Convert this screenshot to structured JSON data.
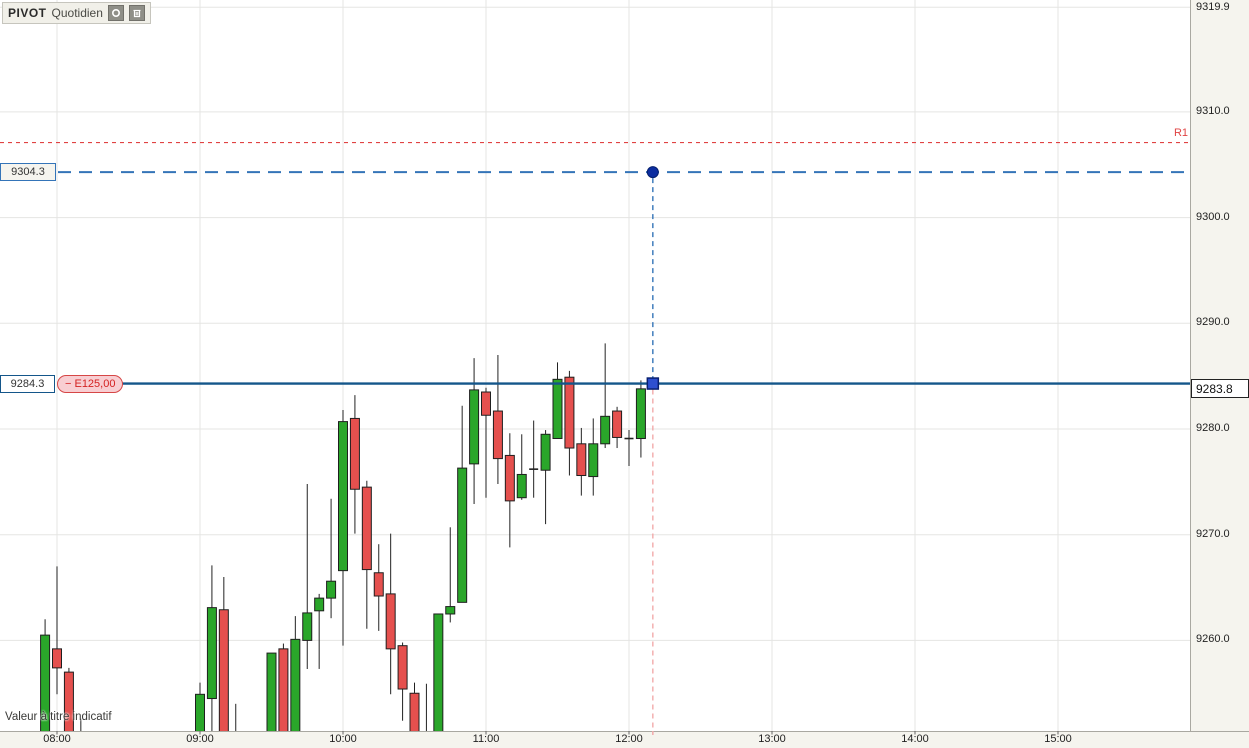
{
  "indicator_box": {
    "name": "PIVOT",
    "period": "Quotidien",
    "icons": [
      "target-icon",
      "trash-icon"
    ]
  },
  "footer_note": "Valeur à titre indicatif",
  "y_axis": {
    "labels": [
      {
        "text": "9319.9",
        "price": 9319.9
      },
      {
        "text": "9310.0",
        "price": 9310.0
      },
      {
        "text": "9300.0",
        "price": 9300.0
      },
      {
        "text": "9290.0",
        "price": 9290.0
      },
      {
        "text": "9280.0",
        "price": 9280.0
      },
      {
        "text": "9270.0",
        "price": 9270.0
      },
      {
        "text": "9260.0",
        "price": 9260.0
      }
    ]
  },
  "x_axis": {
    "labels": [
      {
        "text": "08:00",
        "hour": 8
      },
      {
        "text": "09:00",
        "hour": 9
      },
      {
        "text": "10:00",
        "hour": 10
      },
      {
        "text": "11:00",
        "hour": 11
      },
      {
        "text": "12:00",
        "hour": 12
      },
      {
        "text": "13:00",
        "hour": 13
      },
      {
        "text": "14:00",
        "hour": 14
      },
      {
        "text": "15:00",
        "hour": 15
      }
    ]
  },
  "levels": {
    "r1": {
      "label": "R1",
      "price": 9307.1
    },
    "target": {
      "label": "9304.3",
      "price": 9304.3
    },
    "position": {
      "label": "9284.3",
      "price": 9284.3,
      "pnl": "− E125,00"
    },
    "last": {
      "label": "9283.8",
      "price": 9283.8
    }
  },
  "marker": {
    "time": "12:10",
    "dot_price": 9304.3,
    "square_price": 9284.3
  },
  "colors": {
    "candle_up": "#2aa62a",
    "candle_down": "#e5504e",
    "candle_border": "#1f1f1f",
    "wick": "#222222",
    "grid": "#e5e5e3",
    "axis_bg": "#f5f4ee",
    "axis_border": "#a9a8a1",
    "r1_dash": "#e04343",
    "target_dash": "#3474b8",
    "position_line": "#14568a",
    "marker_dot": "#0c2da0",
    "marker_square": "#2e4fd0",
    "marker_square_border": "#081f70",
    "vertical_pink_dash": "#f2aaaa",
    "tick": "#666666"
  },
  "chart_data": {
    "type": "candlestick",
    "interval": "5min",
    "title": "PIVOT Quotidien",
    "x_visible_range": [
      "07:55",
      "15:55"
    ],
    "ylim": [
      9251.4,
      9320.6
    ],
    "grid": true,
    "candles": [
      {
        "t": "07:55",
        "o": 9251.0,
        "h": 9262.0,
        "l": 9251.0,
        "c": 9260.5
      },
      {
        "t": "08:00",
        "o": 9259.2,
        "h": 9267.0,
        "l": 9254.9,
        "c": 9257.4
      },
      {
        "t": "08:05",
        "o": 9257.0,
        "h": 9257.4,
        "l": 9250.8,
        "c": 9250.8
      },
      {
        "t": "08:10",
        "o": 9251.0,
        "h": 9252.6,
        "l": 9251.0,
        "c": 9251.0
      },
      {
        "t": "09:00",
        "o": 9250.8,
        "h": 9256.0,
        "l": 9250.8,
        "c": 9254.9
      },
      {
        "t": "09:05",
        "o": 9254.5,
        "h": 9267.1,
        "l": 9251.0,
        "c": 9263.1
      },
      {
        "t": "09:10",
        "o": 9262.9,
        "h": 9266.0,
        "l": 9250.8,
        "c": 9250.8
      },
      {
        "t": "09:15",
        "o": 9251.0,
        "h": 9254.0,
        "l": 9251.0,
        "c": 9251.0
      },
      {
        "t": "09:30",
        "o": 9250.8,
        "h": 9258.8,
        "l": 9250.8,
        "c": 9258.8
      },
      {
        "t": "09:35",
        "o": 9259.2,
        "h": 9259.7,
        "l": 9250.8,
        "c": 9250.8
      },
      {
        "t": "09:40",
        "o": 9250.8,
        "h": 9262.3,
        "l": 9250.8,
        "c": 9260.1
      },
      {
        "t": "09:45",
        "o": 9260.0,
        "h": 9274.8,
        "l": 9257.3,
        "c": 9262.6
      },
      {
        "t": "09:50",
        "o": 9262.8,
        "h": 9264.4,
        "l": 9257.3,
        "c": 9264.0
      },
      {
        "t": "09:55",
        "o": 9264.0,
        "h": 9273.4,
        "l": 9262.1,
        "c": 9265.6
      },
      {
        "t": "10:00",
        "o": 9266.6,
        "h": 9281.8,
        "l": 9259.5,
        "c": 9280.7
      },
      {
        "t": "10:05",
        "o": 9281.0,
        "h": 9283.2,
        "l": 9270.1,
        "c": 9274.3
      },
      {
        "t": "10:10",
        "o": 9274.5,
        "h": 9275.1,
        "l": 9261.1,
        "c": 9266.7
      },
      {
        "t": "10:15",
        "o": 9266.4,
        "h": 9269.1,
        "l": 9260.9,
        "c": 9264.2
      },
      {
        "t": "10:20",
        "o": 9264.4,
        "h": 9270.1,
        "l": 9254.9,
        "c": 9259.2
      },
      {
        "t": "10:25",
        "o": 9259.5,
        "h": 9259.8,
        "l": 9252.4,
        "c": 9255.4
      },
      {
        "t": "10:30",
        "o": 9255.0,
        "h": 9256.0,
        "l": 9250.8,
        "c": 9250.8
      },
      {
        "t": "10:35",
        "o": 9251.0,
        "h": 9255.9,
        "l": 9251.0,
        "c": 9251.0
      },
      {
        "t": "10:40",
        "o": 9250.8,
        "h": 9262.5,
        "l": 9250.8,
        "c": 9262.5
      },
      {
        "t": "10:45",
        "o": 9262.5,
        "h": 9270.7,
        "l": 9261.7,
        "c": 9263.2
      },
      {
        "t": "10:50",
        "o": 9263.6,
        "h": 9282.2,
        "l": 9263.6,
        "c": 9276.3
      },
      {
        "t": "10:55",
        "o": 9276.7,
        "h": 9286.7,
        "l": 9272.9,
        "c": 9283.7
      },
      {
        "t": "11:00",
        "o": 9283.5,
        "h": 9283.9,
        "l": 9273.5,
        "c": 9281.3
      },
      {
        "t": "11:05",
        "o": 9281.7,
        "h": 9287.0,
        "l": 9274.8,
        "c": 9277.2
      },
      {
        "t": "11:10",
        "o": 9277.5,
        "h": 9279.6,
        "l": 9268.8,
        "c": 9273.2
      },
      {
        "t": "11:15",
        "o": 9273.5,
        "h": 9279.5,
        "l": 9273.3,
        "c": 9275.7
      },
      {
        "t": "11:20",
        "o": 9276.2,
        "h": 9280.8,
        "l": 9273.5,
        "c": 9276.2
      },
      {
        "t": "11:25",
        "o": 9276.1,
        "h": 9279.9,
        "l": 9271.0,
        "c": 9279.5
      },
      {
        "t": "11:30",
        "o": 9279.1,
        "h": 9286.3,
        "l": 9279.1,
        "c": 9284.7
      },
      {
        "t": "11:35",
        "o": 9284.9,
        "h": 9285.5,
        "l": 9275.6,
        "c": 9278.2
      },
      {
        "t": "11:40",
        "o": 9278.6,
        "h": 9280.1,
        "l": 9273.7,
        "c": 9275.6
      },
      {
        "t": "11:45",
        "o": 9275.5,
        "h": 9281.0,
        "l": 9273.7,
        "c": 9278.6
      },
      {
        "t": "11:50",
        "o": 9278.6,
        "h": 9288.1,
        "l": 9278.2,
        "c": 9281.2
      },
      {
        "t": "11:55",
        "o": 9281.7,
        "h": 9282.1,
        "l": 9278.2,
        "c": 9279.2
      },
      {
        "t": "12:00",
        "o": 9279.1,
        "h": 9279.9,
        "l": 9276.5,
        "c": 9279.1
      },
      {
        "t": "12:05",
        "o": 9279.1,
        "h": 9284.6,
        "l": 9277.3,
        "c": 9283.8
      }
    ]
  }
}
